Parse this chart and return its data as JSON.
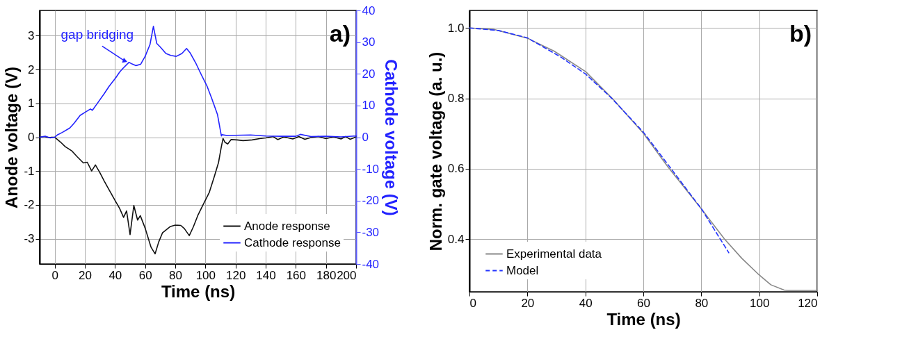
{
  "chart_data": [
    {
      "type": "line",
      "xlabel": "Time (ns)",
      "ylabel": "Anode voltage (V)",
      "y2label": "Cathode voltage (V)",
      "xlim": [
        -10,
        200
      ],
      "xticks": [
        0,
        20,
        40,
        60,
        80,
        100,
        120,
        140,
        160,
        180,
        200
      ],
      "ylim": [
        -3.75,
        3.75
      ],
      "yticks": [
        -3,
        -2,
        -1,
        0,
        1,
        2,
        3
      ],
      "y2lim": [
        -40,
        40
      ],
      "y2ticks": [
        -40,
        -30,
        -20,
        -10,
        0,
        10,
        20,
        30,
        40
      ],
      "grid": true,
      "legend": "bottom right",
      "annotations": [
        "a)",
        {
          "text": "gap bridging",
          "x": 49,
          "y": 2.2
        }
      ],
      "series": [
        {
          "name": "Anode response",
          "color": "#111111",
          "line_style": "solid",
          "x": [
            -10,
            -7,
            -4,
            -2,
            0,
            1,
            4,
            7,
            11.5,
            15,
            19,
            21.6,
            24.5,
            27,
            30,
            32.8,
            36,
            40.4,
            43,
            45.7,
            47.7,
            50,
            52.5,
            55,
            56.8,
            60.1,
            63.9,
            66.6,
            69,
            71.5,
            76.8,
            80,
            83.7,
            86,
            89.3,
            92,
            95,
            99,
            102.6,
            106,
            108.7,
            110.5,
            111.7,
            113,
            114.8,
            117,
            121,
            125,
            131,
            136,
            140,
            145,
            148,
            152,
            158,
            162,
            166,
            170,
            175,
            180,
            185,
            190,
            193,
            196,
            200
          ],
          "values": [
            0,
            0.02,
            -0.01,
            0,
            0,
            -0.04,
            -0.15,
            -0.28,
            -0.41,
            -0.58,
            -0.76,
            -0.74,
            -1.0,
            -0.82,
            -1.05,
            -1.29,
            -1.55,
            -1.9,
            -2.1,
            -2.37,
            -2.18,
            -2.88,
            -2.02,
            -2.45,
            -2.32,
            -2.7,
            -3.25,
            -3.45,
            -3.1,
            -2.83,
            -2.64,
            -2.6,
            -2.61,
            -2.7,
            -2.91,
            -2.65,
            -2.31,
            -1.95,
            -1.63,
            -1.15,
            -0.75,
            -0.3,
            -0.04,
            -0.15,
            -0.2,
            -0.07,
            -0.08,
            -0.1,
            -0.08,
            -0.04,
            -0.02,
            0.02,
            -0.07,
            0.01,
            -0.05,
            0.02,
            -0.06,
            -0.01,
            0.02,
            -0.04,
            0.01,
            -0.05,
            0.02,
            -0.06,
            0.01
          ]
        },
        {
          "name": "Cathode response",
          "color": "#2222ff",
          "axis": "y2",
          "line_style": "solid",
          "x": [
            -10,
            -6,
            -3,
            0,
            1.7,
            5,
            10,
            13,
            16.9,
            20,
            23.7,
            25,
            28,
            32.8,
            36,
            40.4,
            43,
            45,
            49.2,
            51,
            54,
            57,
            60,
            63.2,
            65.5,
            67.7,
            70,
            73.8,
            77,
            80.6,
            84.4,
            87.5,
            90,
            93.5,
            97,
            101,
            104,
            108,
            110.6,
            111,
            115,
            120,
            130,
            140,
            150,
            160,
            163,
            170,
            180,
            190,
            200
          ],
          "values": [
            0,
            0.3,
            -0.2,
            0,
            0.7,
            1.5,
            2.9,
            4.5,
            6.9,
            7.8,
            8.9,
            8.5,
            10.5,
            13.7,
            16,
            18.7,
            20.5,
            21.6,
            23.6,
            23.2,
            22.6,
            23,
            25.5,
            29.2,
            35,
            29.6,
            28.5,
            26.4,
            25.8,
            25.5,
            26.4,
            28,
            26.5,
            23.5,
            20,
            16.2,
            12.5,
            7.2,
            0.4,
            0.8,
            0.5,
            0.6,
            0.7,
            0.4,
            0.3,
            0.3,
            0.9,
            0.2,
            0.3,
            0.1,
            0.4
          ]
        }
      ]
    },
    {
      "type": "line",
      "xlabel": "Time (ns)",
      "ylabel": "Norm. gate voltage (a. u.)",
      "xlim": [
        0,
        120
      ],
      "xticks": [
        0,
        20,
        40,
        60,
        80,
        100,
        120
      ],
      "ylim": [
        0.25,
        1.05
      ],
      "yticks": [
        0.4,
        0.6,
        0.8,
        {
          "value": 1,
          "label": "1.0"
        }
      ],
      "grid": true,
      "legend": "bottom left",
      "annotations": [
        "b)"
      ],
      "series": [
        {
          "name": "Experimental data",
          "color": "#888888",
          "line_style": "solid",
          "x": [
            0,
            8.4,
            20,
            29.3,
            40.1,
            49.5,
            60,
            68.4,
            80.2,
            88,
            94,
            100.1,
            104,
            108.6,
            110,
            115,
            120
          ],
          "values": [
            1.0,
            0.996,
            0.971,
            0.934,
            0.876,
            0.798,
            0.701,
            0.606,
            0.484,
            0.4,
            0.345,
            0.297,
            0.27,
            0.255,
            0.254,
            0.254,
            0.254
          ]
        },
        {
          "name": "Model",
          "color": "#2233ff",
          "line_style": "dashed",
          "x": [
            0,
            10,
            20,
            31.6,
            40.1,
            49,
            60,
            68.4,
            80.2,
            89.5
          ],
          "values": [
            1.0,
            0.993,
            0.972,
            0.917,
            0.869,
            0.801,
            0.704,
            0.613,
            0.484,
            0.361
          ]
        }
      ]
    }
  ]
}
